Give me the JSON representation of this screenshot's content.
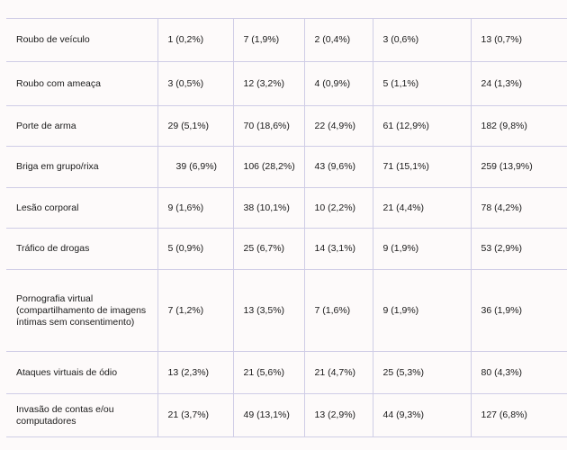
{
  "table": {
    "rows": [
      {
        "label": "Roubo de veículo",
        "values": [
          "1 (0,2%)",
          "7 (1,9%)",
          "2 (0,4%)",
          "3 (0,6%)",
          "13 (0,7%)"
        ]
      },
      {
        "label": "Roubo com ameaça",
        "values": [
          "3 (0,5%)",
          "12 (3,2%)",
          "4 (0,9%)",
          "5 (1,1%)",
          "24 (1,3%)"
        ]
      },
      {
        "label": "Porte de arma",
        "values": [
          "29 (5,1%)",
          "70 (18,6%)",
          "22 (4,9%)",
          "61 (12,9%)",
          "182 (9,8%)"
        ]
      },
      {
        "label": "Briga em grupo/rixa",
        "values": [
          "39 (6,9%)",
          "106 (28,2%)",
          "43 (9,6%)",
          "71 (15,1%)",
          "259 (13,9%)"
        ]
      },
      {
        "label": "Lesão corporal",
        "values": [
          "9 (1,6%)",
          "38 (10,1%)",
          "10 (2,2%)",
          "21 (4,4%)",
          "78 (4,2%)"
        ]
      },
      {
        "label": "Tráfico de drogas",
        "values": [
          "5 (0,9%)",
          "25 (6,7%)",
          "14 (3,1%)",
          "9 (1,9%)",
          "53 (2,9%)"
        ]
      },
      {
        "label": "Pornografia virtual (compartilhamento de imagens íntimas sem consentimento)",
        "values": [
          "7 (1,2%)",
          "13 (3,5%)",
          "7 (1,6%)",
          "9 (1,9%)",
          "36 (1,9%)"
        ]
      },
      {
        "label": "Ataques virtuais de ódio",
        "values": [
          "13 (2,3%)",
          "21 (5,6%)",
          "21 (4,7%)",
          "25 (5,3%)",
          "80 (4,3%)"
        ]
      },
      {
        "label": "Invasão de contas e/ou computadores",
        "values": [
          "21 (3,7%)",
          "49 (13,1%)",
          "13 (2,9%)",
          "44 (9,3%)",
          "127 (6,8%)"
        ]
      }
    ]
  }
}
